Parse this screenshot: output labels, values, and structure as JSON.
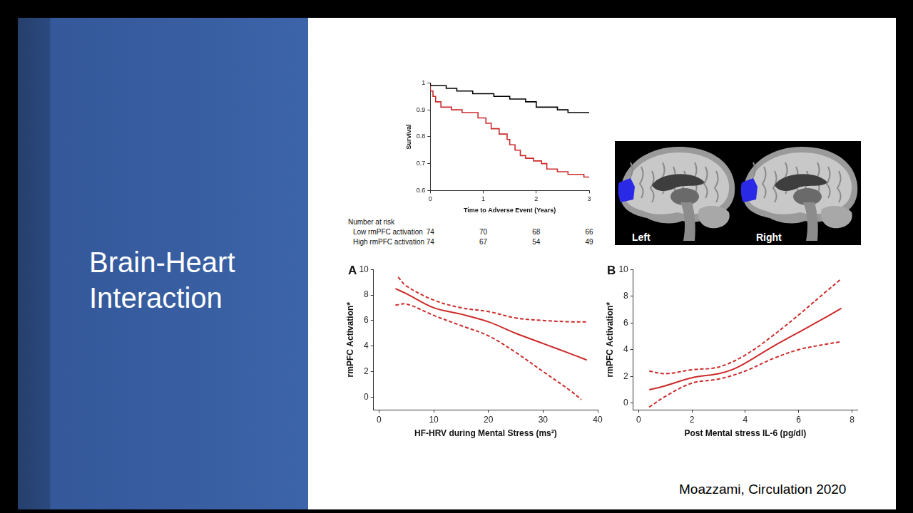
{
  "slide": {
    "title": "Brain-Heart Interaction",
    "citation": "Moazzami, Circulation 2020"
  },
  "image": {
    "labels": [
      "Left",
      "Right"
    ]
  },
  "chart_data": [
    {
      "type": "step",
      "x_label": "Time to Adverse Event (Years)",
      "y_label": "Survival",
      "xlim": [
        0,
        3
      ],
      "xticks": [
        0,
        1,
        2,
        3
      ],
      "ylim": [
        0.6,
        1
      ],
      "yticks": [
        0.6,
        0.7,
        0.8,
        0.9,
        1
      ],
      "grid": false,
      "at_risk_title": "Number at risk",
      "at_risk_x": [
        0,
        1,
        2,
        3
      ],
      "series": [
        {
          "name": "Low rmPFC activation",
          "color": "#000000",
          "line_style": "solid",
          "x": [
            0,
            0.3,
            0.5,
            0.8,
            1.2,
            1.5,
            1.8,
            2.0,
            2.4,
            2.6,
            2.9,
            3
          ],
          "values": [
            1,
            0.99,
            0.98,
            0.97,
            0.96,
            0.95,
            0.94,
            0.93,
            0.91,
            0.9,
            0.89,
            0.89
          ],
          "at_risk": [
            74,
            70,
            68,
            66
          ]
        },
        {
          "name": "High rmPFC activation",
          "color": "#cc2b2b",
          "line_style": "solid",
          "x": [
            0,
            0.05,
            0.1,
            0.2,
            0.4,
            0.6,
            0.9,
            1.05,
            1.15,
            1.3,
            1.45,
            1.5,
            1.6,
            1.7,
            1.8,
            1.95,
            2.1,
            2.2,
            2.4,
            2.6,
            2.9,
            3
          ],
          "values": [
            1,
            0.97,
            0.95,
            0.93,
            0.91,
            0.9,
            0.89,
            0.87,
            0.85,
            0.83,
            0.81,
            0.79,
            0.77,
            0.75,
            0.73,
            0.72,
            0.71,
            0.7,
            0.68,
            0.67,
            0.66,
            0.65
          ],
          "at_risk": [
            74,
            67,
            54,
            49
          ]
        }
      ]
    },
    {
      "type": "line",
      "panel_label": "A",
      "x_label": "HF-HRV during Mental Stress (ms²)",
      "y_label": "rmPFC Activation*",
      "xlim": [
        -1,
        40
      ],
      "xticks": [
        0,
        10,
        20,
        30,
        40
      ],
      "ylim": [
        -1,
        10
      ],
      "yticks": [
        0,
        2,
        4,
        6,
        8,
        10
      ],
      "grid": false,
      "series": [
        {
          "color": "#cc2b2b",
          "line_style": "solid",
          "x": [
            3,
            5,
            10,
            15,
            20,
            25,
            30,
            35,
            38
          ],
          "values": [
            8.5,
            8.1,
            7.0,
            6.5,
            5.9,
            5.0,
            4.2,
            3.4,
            2.9
          ]
        },
        {
          "color": "#cc2b2b",
          "line_style": "dashed",
          "x": [
            3.5,
            5,
            10,
            15,
            20,
            25,
            30,
            35,
            38
          ],
          "values": [
            9.4,
            8.7,
            7.6,
            7.0,
            6.7,
            6.2,
            6.0,
            5.9,
            5.9
          ]
        },
        {
          "color": "#cc2b2b",
          "line_style": "dashed",
          "x": [
            3,
            5,
            10,
            15,
            20,
            25,
            30,
            35,
            37
          ],
          "values": [
            7.2,
            7.3,
            6.4,
            5.6,
            4.8,
            3.5,
            2.0,
            0.5,
            -0.2
          ]
        }
      ]
    },
    {
      "type": "line",
      "panel_label": "B",
      "x_label": "Post Mental stress IL-6 (pg/dl)",
      "y_label": "rmPFC Activation*",
      "xlim": [
        -0.2,
        8.2
      ],
      "xticks": [
        0,
        2,
        4,
        6,
        8
      ],
      "ylim": [
        -0.5,
        10
      ],
      "yticks": [
        0,
        2,
        4,
        6,
        8,
        10
      ],
      "grid": false,
      "series": [
        {
          "color": "#cc2b2b",
          "line_style": "solid",
          "x": [
            0.4,
            1,
            2,
            3,
            3.5,
            4,
            5,
            6,
            7,
            7.6
          ],
          "values": [
            1.0,
            1.3,
            1.9,
            2.2,
            2.5,
            3.0,
            4.2,
            5.3,
            6.4,
            7.1
          ]
        },
        {
          "color": "#cc2b2b",
          "line_style": "dashed",
          "x": [
            0.4,
            1,
            2,
            3,
            4,
            5,
            6,
            7,
            7.6
          ],
          "values": [
            2.4,
            2.2,
            2.5,
            2.7,
            3.6,
            5.0,
            6.6,
            8.3,
            9.3
          ]
        },
        {
          "color": "#cc2b2b",
          "line_style": "dashed",
          "x": [
            0.4,
            1,
            2,
            3,
            4,
            5,
            6,
            7,
            7.6
          ],
          "values": [
            -0.3,
            0.5,
            1.5,
            1.8,
            2.4,
            3.3,
            4.0,
            4.4,
            4.6
          ]
        }
      ]
    }
  ]
}
